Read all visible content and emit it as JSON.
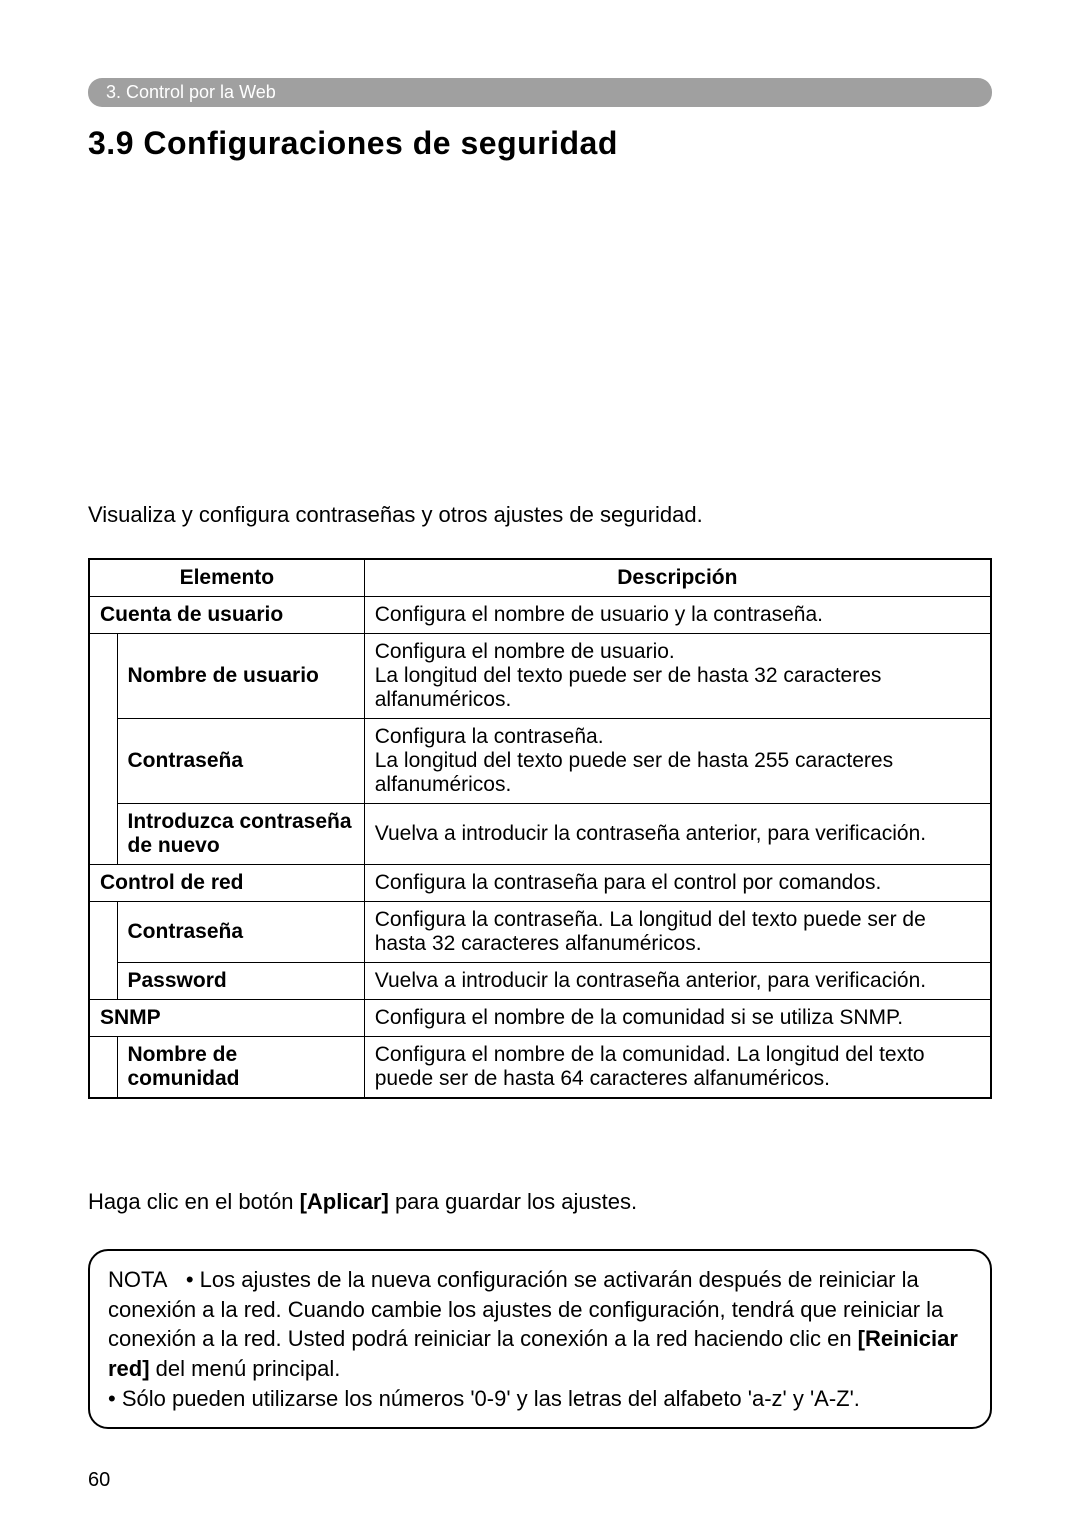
{
  "breadcrumb": "3. Control por la Web",
  "title": "3.9 Configuraciones de seguridad",
  "intro": "Visualiza y configura contraseñas y otros ajustes de seguridad.",
  "table": {
    "header_element": "Elemento",
    "header_description": "Descripción",
    "rows": [
      {
        "element": "Cuenta de usuario",
        "desc": "Configura el nombre de usuario y la contraseña.",
        "cat": true
      },
      {
        "element": "Nombre de usuario",
        "desc": "Configura el nombre de usuario.\nLa longitud del texto puede ser de hasta 32 caracteres alfanuméricos."
      },
      {
        "element": "Contraseña",
        "desc": "Configura la contraseña.\nLa longitud del texto puede ser de hasta 255 caracteres alfanuméricos."
      },
      {
        "element": "Introduzca contraseña de nuevo",
        "desc": "Vuelva a introducir la contraseña anterior, para verificación."
      },
      {
        "element": "Control de red",
        "desc": "Configura la contraseña para el control por comandos.",
        "cat": true
      },
      {
        "element": "Contraseña",
        "desc": "Configura la contraseña. La longitud del texto puede ser de hasta 32 caracteres alfanuméricos."
      },
      {
        "element": "Password",
        "desc": "Vuelva a introducir la contraseña anterior, para verificación."
      },
      {
        "element": "SNMP",
        "desc": "Configura el nombre de la comunidad si se utiliza SNMP.",
        "cat": true
      },
      {
        "element": "Nombre de comunidad",
        "desc": "Configura el nombre de la comunidad. La longitud del texto puede ser de hasta 64 caracteres alfanuméricos."
      }
    ]
  },
  "below": {
    "pre": "Haga clic en el botón ",
    "bold": "[Aplicar]",
    "post": " para guardar los ajustes."
  },
  "note": {
    "label": "NOTA",
    "bullet1_pre": "• Los ajustes de la nueva configuración se activarán después de reiniciar la conexión a la red. Cuando cambie los ajustes de configuración, tendrá que reiniciar la conexión a la red. Usted podrá reiniciar la conexión a la red haciendo clic en ",
    "bullet1_bold": "[Reiniciar red]",
    "bullet1_post": " del menú principal.",
    "bullet2": "• Sólo pueden utilizarse los números '0-9' y las letras del alfabeto 'a-z' y 'A-Z'."
  },
  "page_number": "60"
}
